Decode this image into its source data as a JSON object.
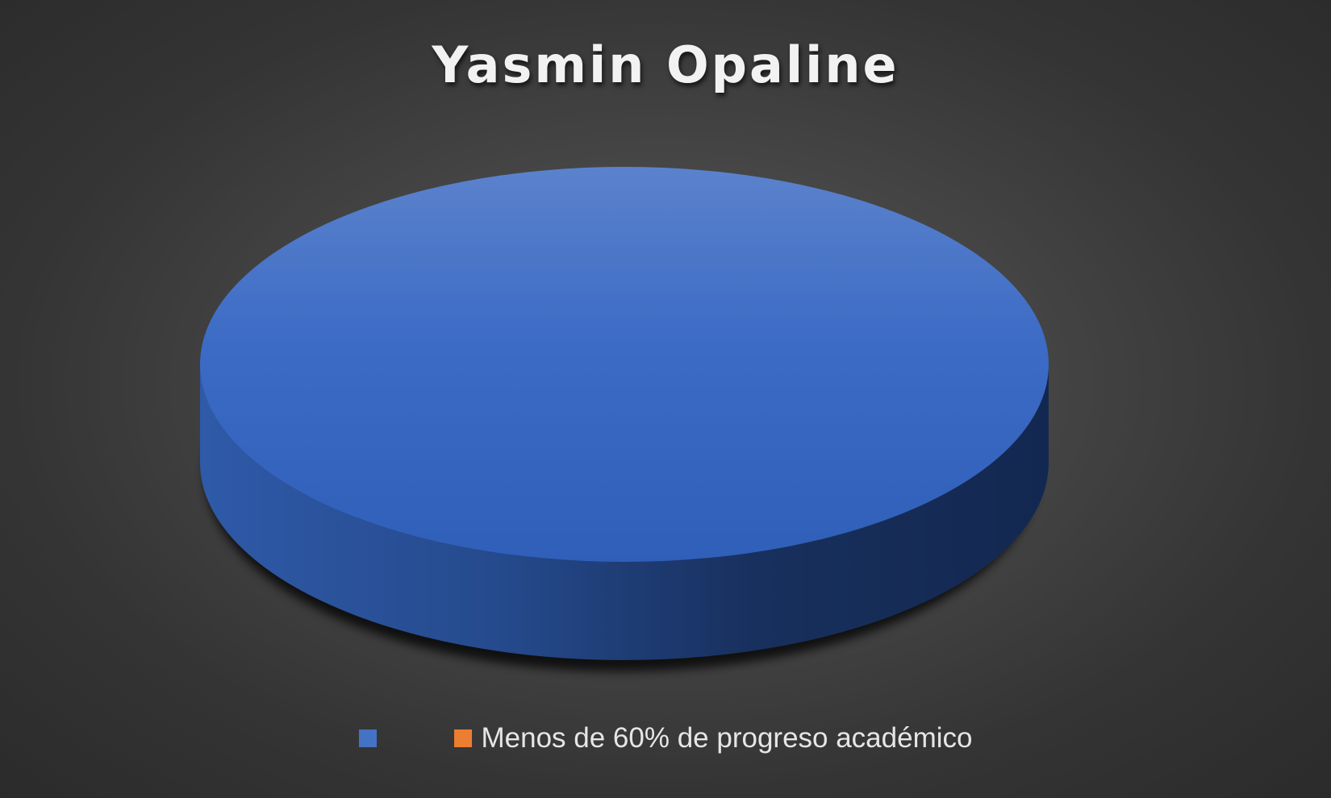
{
  "chart_data": {
    "type": "pie",
    "title": "Yasmin Opaline",
    "slices": [
      {
        "label": "",
        "value": 100,
        "color": "#4472C4"
      },
      {
        "label": "Menos de 60% de progreso académico",
        "value": 0,
        "color": "#ED7D31"
      }
    ],
    "three_d": true,
    "legend_position": "bottom"
  }
}
